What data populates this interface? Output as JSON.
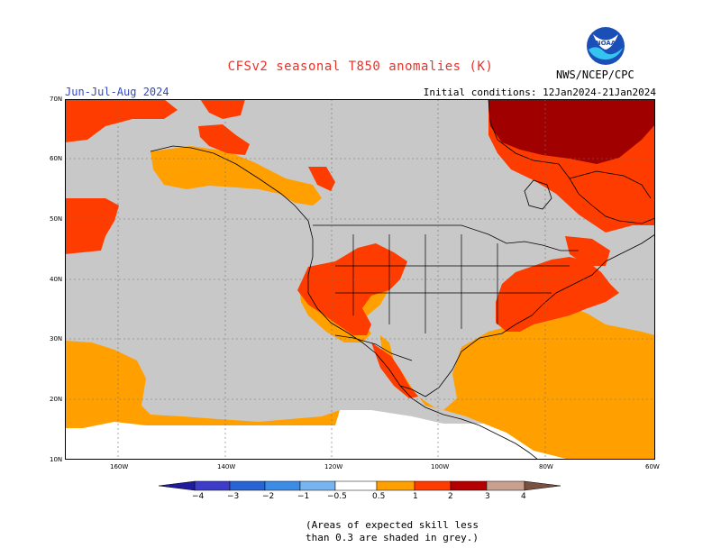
{
  "title": "CFSv2 seasonal T850 anomalies (K)",
  "season": "Jun-Jul-Aug 2024",
  "initial_conditions": "Initial conditions: 12Jan2024-21Jan2024",
  "agency": "NWS/NCEP/CPC",
  "logo_text": "NOAA",
  "map": {
    "lat_labels": [
      "70N",
      "60N",
      "50N",
      "40N",
      "30N",
      "20N",
      "10N"
    ],
    "lon_labels": [
      "160W",
      "140W",
      "120W",
      "100W",
      "80W",
      "60W"
    ],
    "grey_meaning": "low skill"
  },
  "colorbar": {
    "labels": [
      "−4",
      "−3",
      "−2",
      "−1",
      "−0.5",
      "0.5",
      "1",
      "2",
      "3",
      "4"
    ],
    "colors": {
      "lt_m4": "#1e1c9c",
      "m4_m3": "#3c3cc8",
      "m3_m2": "#2864d2",
      "m2_m1": "#3c8ce6",
      "m1_m05": "#78b4f0",
      "mid": "#ffffff",
      "p05_1": "#ffa000",
      "p1_2": "#ff3c00",
      "p2_3": "#b40000",
      "p3_4": "#c8a090",
      "gt_4": "#7a5040"
    }
  },
  "colors": {
    "grey": "#c8c8c8",
    "orange": "#ffa000",
    "red": "#ff3c00",
    "darkred": "#a00000",
    "title": "#e8332a",
    "season": "#3048c8"
  },
  "note_line1": "(Areas of expected skill less",
  "note_line2": "than 0.3 are shaded in grey.)"
}
